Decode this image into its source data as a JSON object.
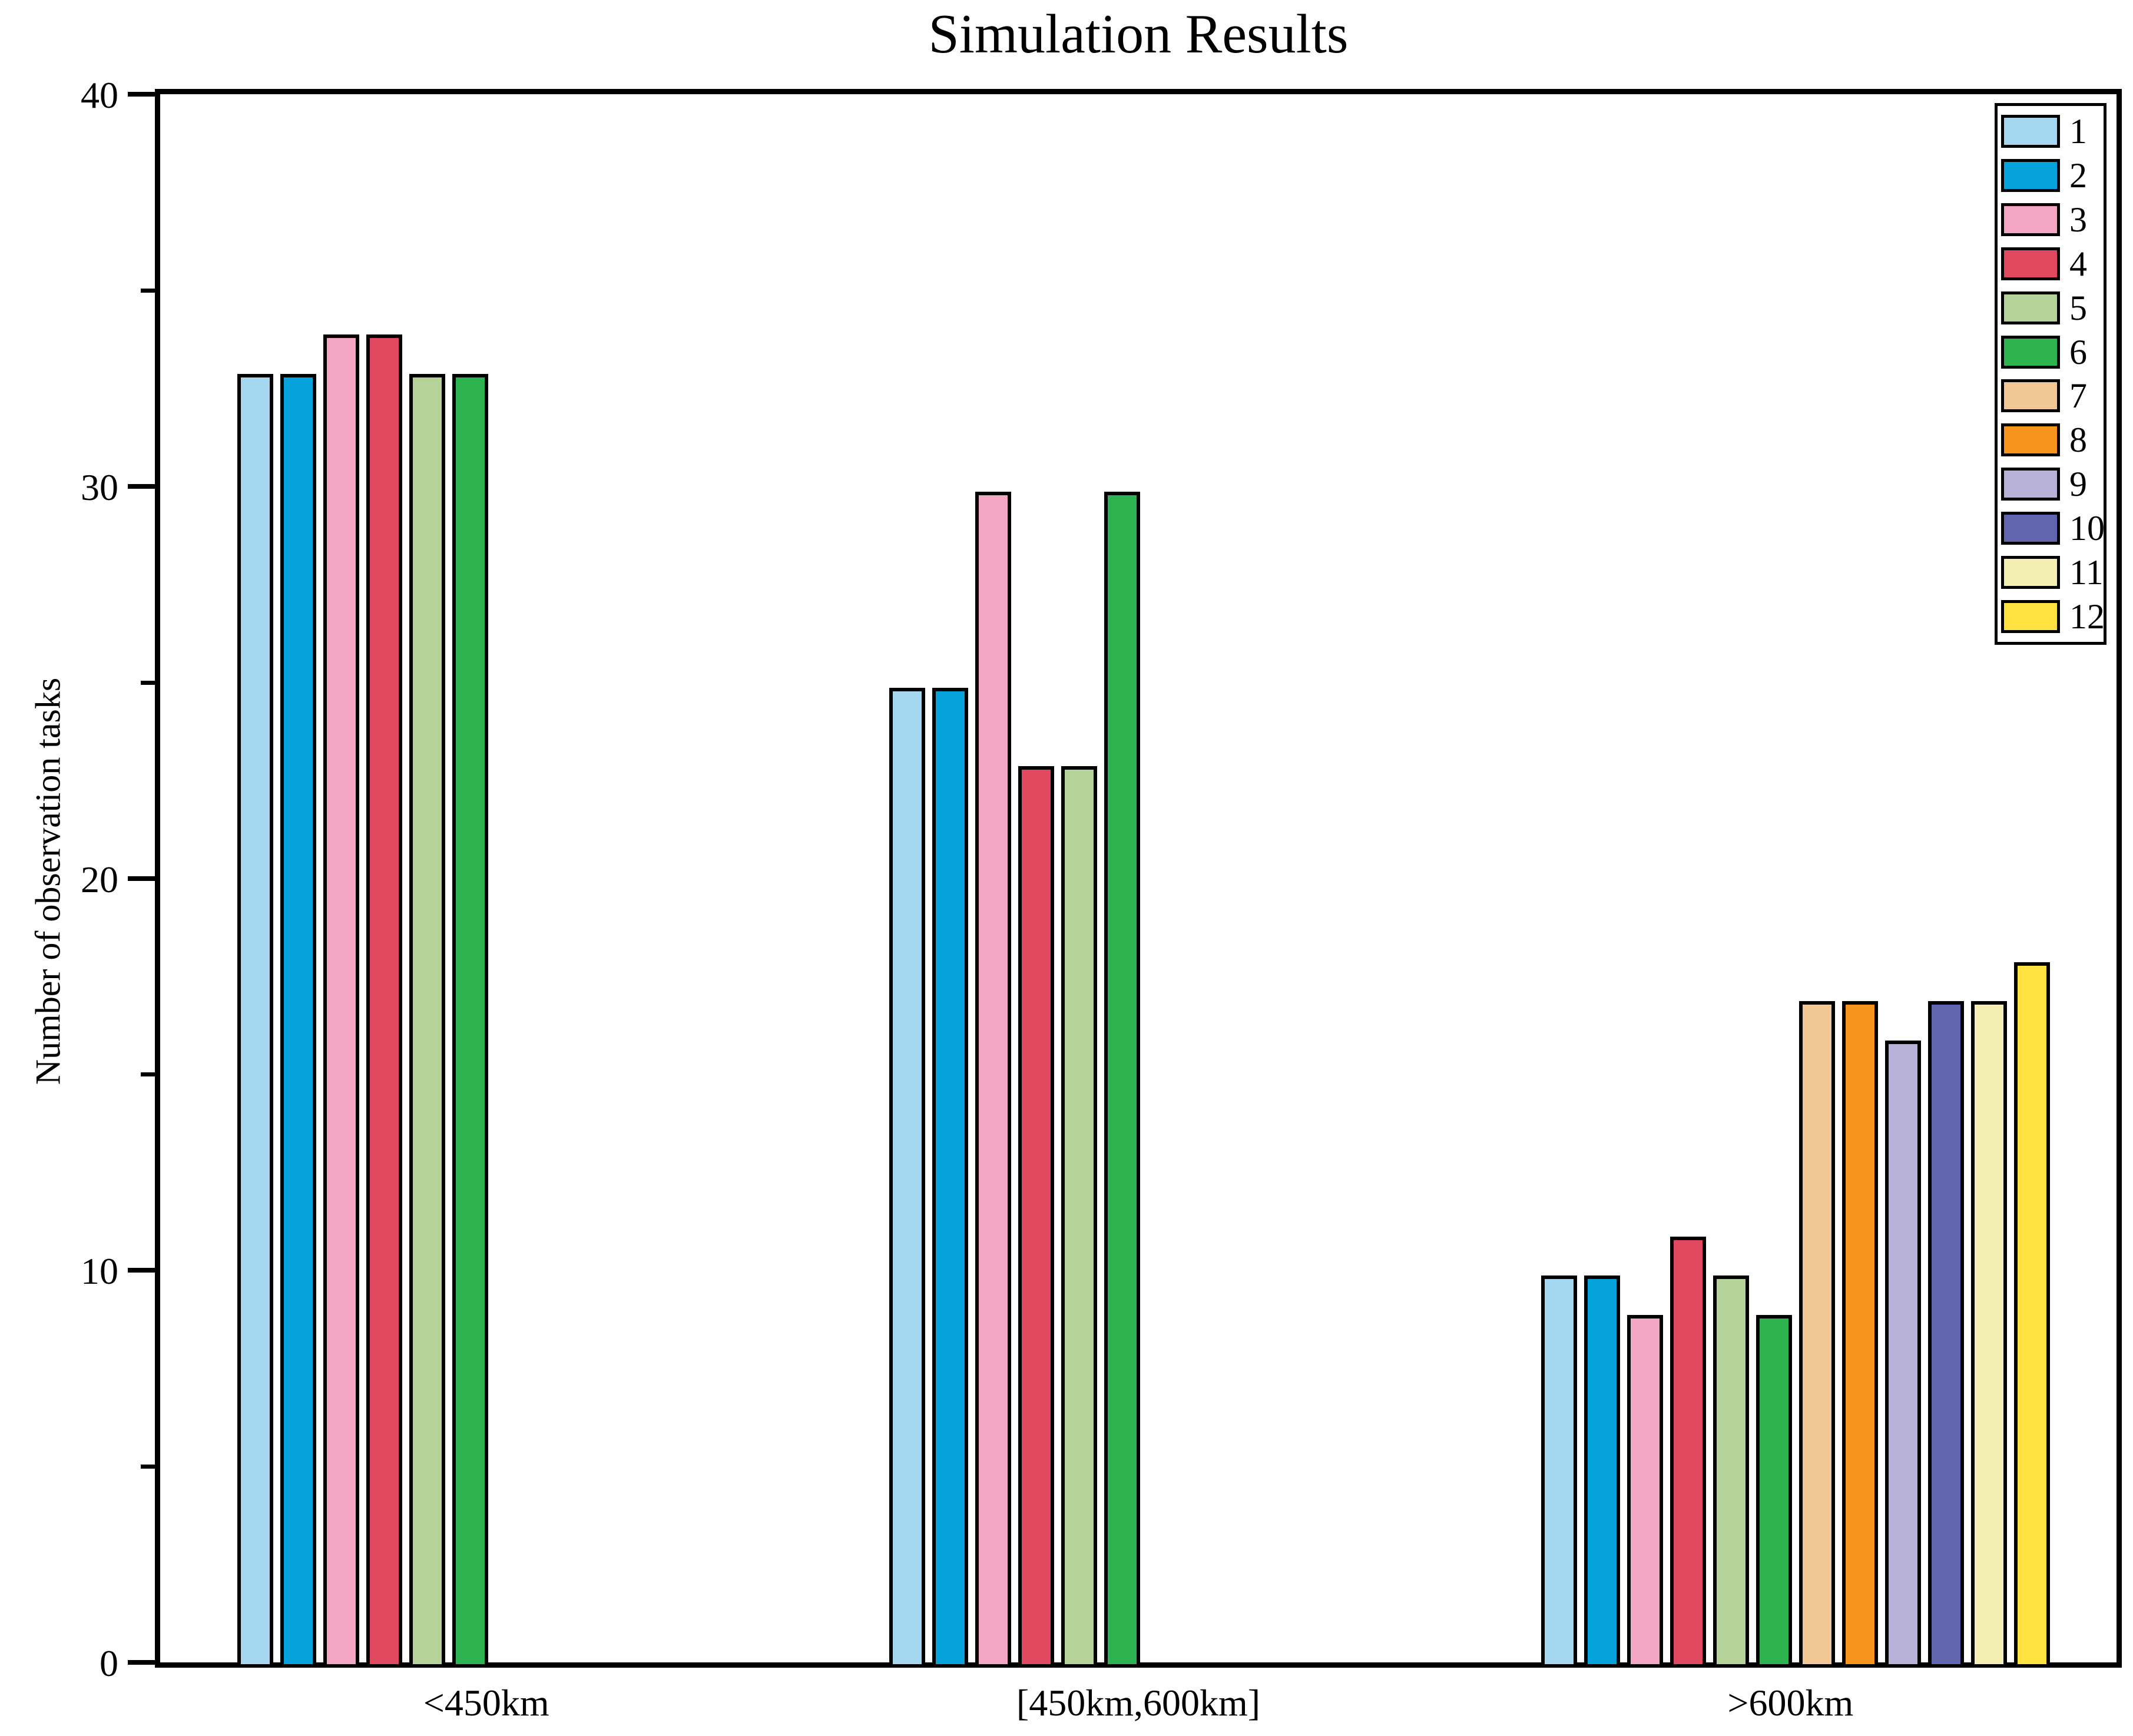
{
  "chart_data": {
    "type": "bar",
    "title": "Simulation Results",
    "xlabel": "",
    "ylabel": "Number of observation tasks",
    "categories": [
      "<450km",
      "[450km,600km]",
      ">600km"
    ],
    "series": [
      {
        "name": "1",
        "color": "#a6d7f0",
        "values": [
          33,
          25,
          10
        ]
      },
      {
        "name": "2",
        "color": "#06a2dc",
        "values": [
          33,
          25,
          10
        ]
      },
      {
        "name": "3",
        "color": "#f2a6c4",
        "values": [
          34,
          30,
          9
        ]
      },
      {
        "name": "4",
        "color": "#e0485f",
        "values": [
          34,
          23,
          11
        ]
      },
      {
        "name": "5",
        "color": "#b5d398",
        "values": [
          33,
          23,
          10
        ]
      },
      {
        "name": "6",
        "color": "#2eb351",
        "values": [
          33,
          30,
          9
        ]
      },
      {
        "name": "7",
        "color": "#f0c795",
        "values": [
          null,
          null,
          17
        ]
      },
      {
        "name": "8",
        "color": "#f7941e",
        "values": [
          null,
          null,
          17
        ]
      },
      {
        "name": "9",
        "color": "#b7b0d7",
        "values": [
          null,
          null,
          16
        ]
      },
      {
        "name": "10",
        "color": "#6065ae",
        "values": [
          null,
          null,
          17
        ]
      },
      {
        "name": "11",
        "color": "#f3eeb2",
        "values": [
          null,
          null,
          17
        ]
      },
      {
        "name": "12",
        "color": "#ffe240",
        "values": [
          null,
          null,
          18
        ]
      }
    ],
    "ylim": [
      0,
      40
    ],
    "yticks": [
      0,
      10,
      20,
      30,
      40
    ],
    "yticks_minor": [
      5,
      15,
      25,
      35
    ],
    "grid": false,
    "legend_position": "upper right",
    "bar_edge_color": "#000000",
    "axis_color": "#000000"
  }
}
